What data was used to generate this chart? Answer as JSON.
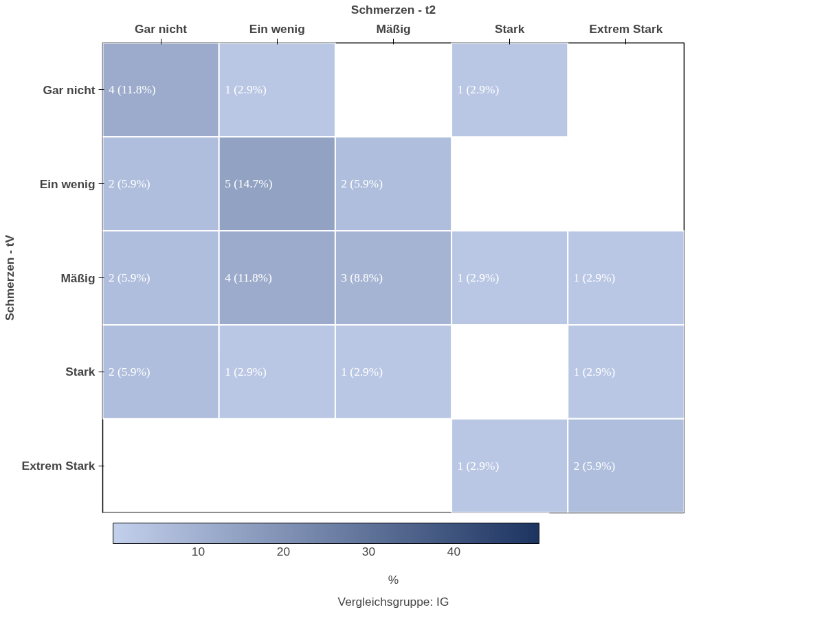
{
  "chart_data": {
    "type": "heatmap",
    "xlabel": "Schmerzen - t2",
    "ylabel": "Schmerzen - tV",
    "clabel": "%",
    "categories": [
      "Gar nicht",
      "Ein wenig",
      "Mäßig",
      "Stark",
      "Extrem Stark"
    ],
    "y_categories": [
      "Gar nicht",
      "Ein wenig",
      "Mäßig",
      "Stark",
      "Extrem Stark"
    ],
    "cells": [
      [
        11.8,
        2.9,
        null,
        2.9,
        null
      ],
      [
        5.9,
        14.7,
        5.9,
        null,
        null
      ],
      [
        5.9,
        11.8,
        8.8,
        2.9,
        2.9
      ],
      [
        5.9,
        2.9,
        2.9,
        null,
        2.9
      ],
      [
        null,
        null,
        null,
        2.9,
        5.9
      ]
    ],
    "cell_labels": [
      [
        "4 (11.8%)",
        "1 (2.9%)",
        null,
        "1 (2.9%)",
        null
      ],
      [
        "2 (5.9%)",
        "5 (14.7%)",
        "2 (5.9%)",
        null,
        null
      ],
      [
        "2 (5.9%)",
        "4 (11.8%)",
        "3 (8.8%)",
        "1 (2.9%)",
        "1 (2.9%)"
      ],
      [
        "2 (5.9%)",
        "1 (2.9%)",
        "1 (2.9%)",
        null,
        "1 (2.9%)"
      ],
      [
        null,
        null,
        null,
        "1 (2.9%)",
        "2 (5.9%)"
      ]
    ],
    "clim": [
      0,
      50
    ],
    "cticks": [
      10,
      20,
      30,
      40
    ],
    "annotations": [
      "Vergleichsgruppe: IG"
    ]
  }
}
